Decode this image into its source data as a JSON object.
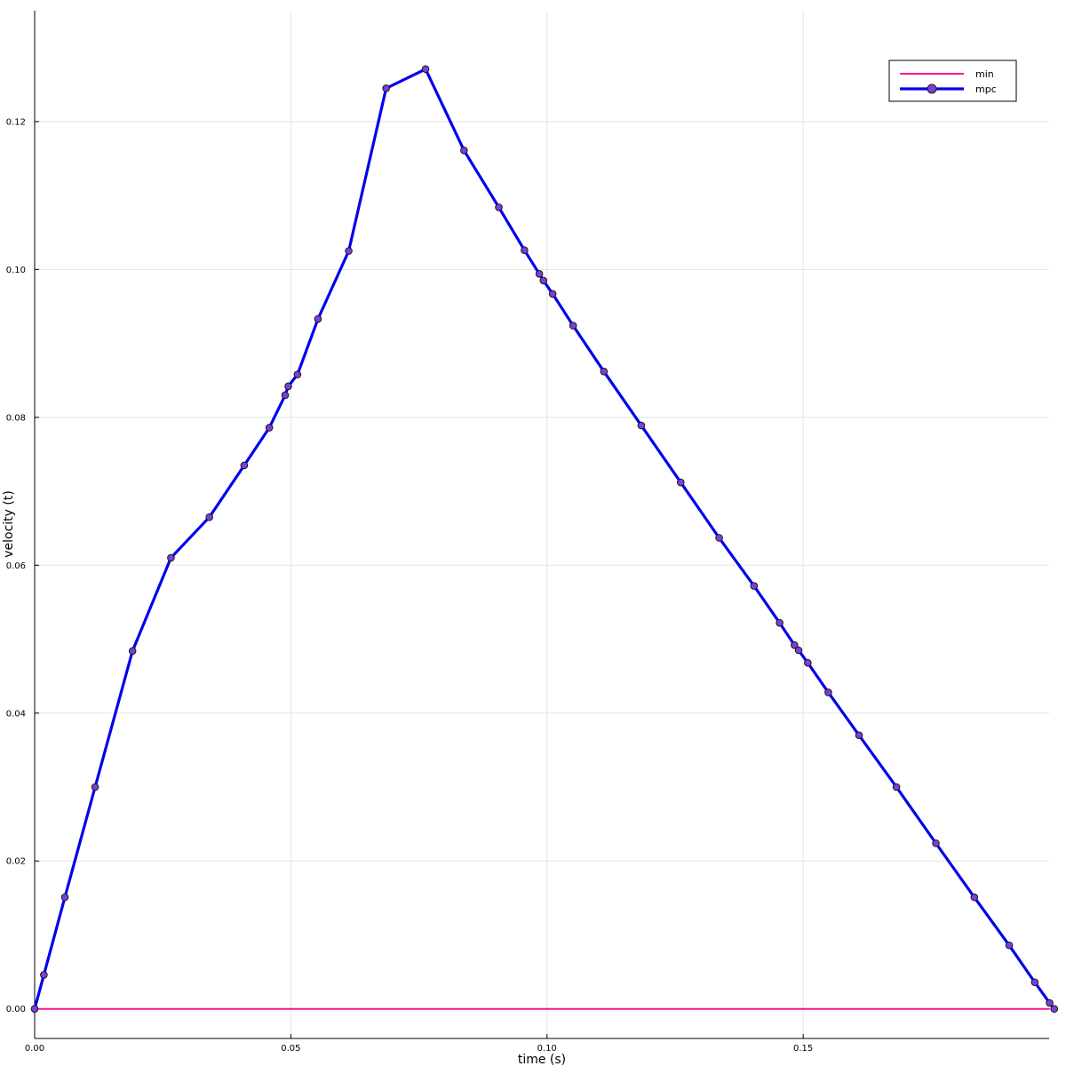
{
  "chart_data": {
    "type": "line",
    "title": "",
    "xlabel": "time (s)",
    "ylabel": "velocity (t)",
    "xlim": [
      0.0,
      0.198
    ],
    "ylim": [
      -0.004,
      0.135
    ],
    "xticks": [
      0.0,
      0.05,
      0.1,
      0.15
    ],
    "xtick_labels": [
      "0.00",
      "0.05",
      "0.10",
      "0.15"
    ],
    "yticks": [
      0.0,
      0.02,
      0.04,
      0.06,
      0.08,
      0.1,
      0.12
    ],
    "ytick_labels": [
      "0.00",
      "0.02",
      "0.04",
      "0.06",
      "0.08",
      "0.10",
      "0.12"
    ],
    "grid": true,
    "legend_position": "top-right",
    "series": [
      {
        "name": "min",
        "color": "#ff1493",
        "marker": false,
        "x": [
          0.0,
          0.198
        ],
        "y": [
          0.0,
          0.0
        ]
      },
      {
        "name": "mpc",
        "color": "#0000ee",
        "marker": true,
        "marker_color": "#7b3fd6",
        "x": [
          0.0,
          0.0018,
          0.0059,
          0.0118,
          0.0191,
          0.0266,
          0.0341,
          0.0409,
          0.0458,
          0.0489,
          0.0495,
          0.0513,
          0.0553,
          0.0613,
          0.0686,
          0.0763,
          0.0838,
          0.0906,
          0.0956,
          0.0985,
          0.0993,
          0.1011,
          0.1051,
          0.1111,
          0.1184,
          0.1261,
          0.1336,
          0.1404,
          0.1454,
          0.1483,
          0.1491,
          0.1509,
          0.1549,
          0.1609,
          0.1682,
          0.1759,
          0.1834,
          0.1902,
          0.1952,
          0.1981,
          0.199
        ],
        "y": [
          0.0,
          0.0046,
          0.0151,
          0.03,
          0.0484,
          0.061,
          0.0665,
          0.0735,
          0.0786,
          0.083,
          0.0842,
          0.0858,
          0.0933,
          0.1025,
          0.1245,
          0.1271,
          0.1161,
          0.1084,
          0.1026,
          0.0994,
          0.0985,
          0.0967,
          0.0924,
          0.0862,
          0.0789,
          0.0712,
          0.0637,
          0.0572,
          0.0522,
          0.0492,
          0.0485,
          0.0468,
          0.0428,
          0.037,
          0.03,
          0.0224,
          0.0151,
          0.0086,
          0.0036,
          0.0008,
          0.0
        ]
      }
    ]
  }
}
